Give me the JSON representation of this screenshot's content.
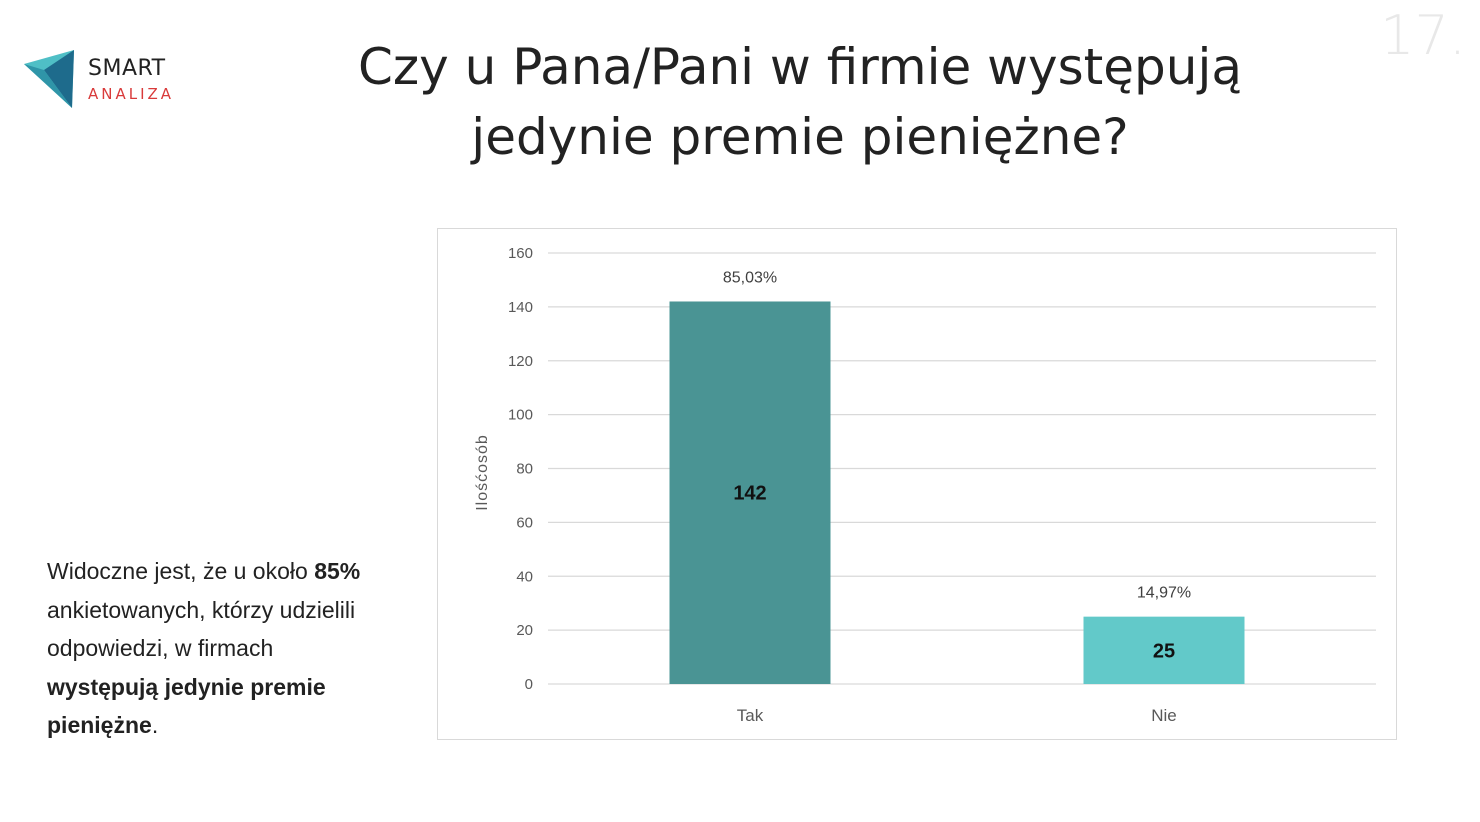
{
  "page_number": "17.",
  "logo": {
    "line1": "SMART",
    "line2": "ANALIZA"
  },
  "title": "Czy u Pana/Pani w firmie występują jedynie premie pieniężne?",
  "description": {
    "part1": "Widoczne jest, że u około ",
    "bold1": "85%",
    "part2": " ankietowanych, którzy udzielili odpowiedzi, w firmach ",
    "bold2": "występują jedynie premie pieniężne",
    "part3": "."
  },
  "colors": {
    "tak": "#4a9494",
    "nie": "#62c9c9",
    "logo_dark": "#1e6b8c",
    "logo_light": "#4fbfc6",
    "accent_red": "#d93a3a"
  },
  "chart_data": {
    "type": "bar",
    "categories": [
      "Tak",
      "Nie"
    ],
    "values": [
      142,
      25
    ],
    "percent_labels": [
      "85,03%",
      "14,97%"
    ],
    "value_labels": [
      "142",
      "25"
    ],
    "ylabel": "Ilośćosób",
    "xlabel": "",
    "ylim": [
      0,
      160
    ],
    "yticks": [
      0,
      20,
      40,
      60,
      80,
      100,
      120,
      140,
      160
    ],
    "grid": true
  }
}
